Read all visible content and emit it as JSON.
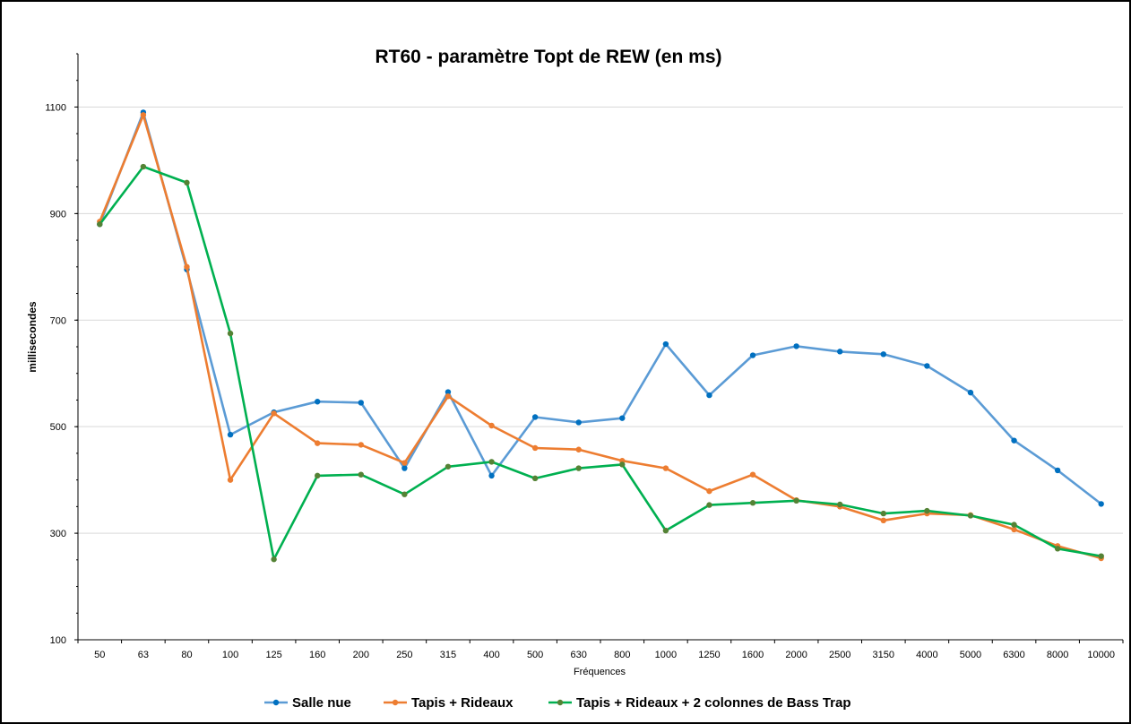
{
  "chart_data": {
    "type": "line",
    "title": "RT60 - paramètre Topt de REW (en ms)",
    "xlabel": "Fréquences",
    "ylabel": "millisecondes",
    "ylim": [
      100,
      1200
    ],
    "yticks": [
      100,
      300,
      500,
      700,
      900,
      1100
    ],
    "grid": true,
    "legend_position": "bottom",
    "categories": [
      "50",
      "63",
      "80",
      "100",
      "125",
      "160",
      "200",
      "250",
      "315",
      "400",
      "500",
      "630",
      "800",
      "1000",
      "1250",
      "1600",
      "2000",
      "2500",
      "3150",
      "4000",
      "5000",
      "6300",
      "8000",
      "10000"
    ],
    "series": [
      {
        "name": "Salle nue",
        "color": "#5b9bd5",
        "marker_color": "#0070c0",
        "values": [
          880,
          1090,
          795,
          485,
          527,
          547,
          545,
          422,
          565,
          408,
          518,
          508,
          516,
          655,
          559,
          634,
          651,
          641,
          636,
          614,
          564,
          474,
          418,
          355
        ]
      },
      {
        "name": "Tapis + Rideaux",
        "color": "#ed7d31",
        "marker_color": "#ed7d31",
        "values": [
          885,
          1085,
          800,
          400,
          525,
          469,
          466,
          432,
          557,
          502,
          460,
          457,
          436,
          422,
          379,
          410,
          362,
          350,
          324,
          337,
          334,
          307,
          276,
          253
        ]
      },
      {
        "name": "Tapis + Rideaux + 2 colonnes de Bass Trap",
        "color": "#00b050",
        "marker_color": "#548235",
        "values": [
          880,
          988,
          958,
          675,
          251,
          408,
          410,
          373,
          425,
          434,
          403,
          422,
          429,
          305,
          353,
          357,
          361,
          354,
          337,
          342,
          333,
          316,
          271,
          257
        ]
      }
    ]
  }
}
